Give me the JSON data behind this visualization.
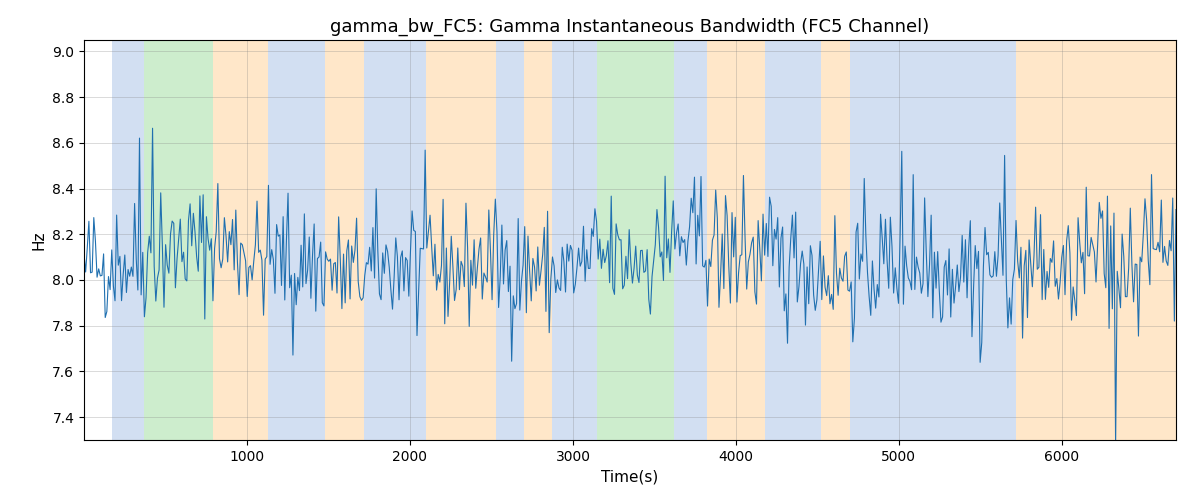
{
  "title": "gamma_bw_FC5: Gamma Instantaneous Bandwidth (FC5 Channel)",
  "xlabel": "Time(s)",
  "ylabel": "Hz",
  "xlim": [
    0,
    6700
  ],
  "ylim": [
    7.3,
    9.05
  ],
  "yticks": [
    7.4,
    7.6,
    7.8,
    8.0,
    8.2,
    8.4,
    8.6,
    8.8,
    9.0
  ],
  "xticks": [
    1000,
    2000,
    3000,
    4000,
    5000,
    6000
  ],
  "line_color": "#2070b0",
  "line_width": 0.8,
  "bg_regions": [
    {
      "xmin": 170,
      "xmax": 370,
      "color": "#aec6e8",
      "alpha": 0.55
    },
    {
      "xmin": 370,
      "xmax": 790,
      "color": "#90d890",
      "alpha": 0.45
    },
    {
      "xmin": 790,
      "xmax": 1130,
      "color": "#ffd59e",
      "alpha": 0.55
    },
    {
      "xmin": 1130,
      "xmax": 1480,
      "color": "#aec6e8",
      "alpha": 0.55
    },
    {
      "xmin": 1480,
      "xmax": 1720,
      "color": "#ffd59e",
      "alpha": 0.55
    },
    {
      "xmin": 1720,
      "xmax": 2100,
      "color": "#aec6e8",
      "alpha": 0.55
    },
    {
      "xmin": 2100,
      "xmax": 2530,
      "color": "#ffd59e",
      "alpha": 0.55
    },
    {
      "xmin": 2530,
      "xmax": 2700,
      "color": "#aec6e8",
      "alpha": 0.55
    },
    {
      "xmin": 2700,
      "xmax": 2870,
      "color": "#ffd59e",
      "alpha": 0.55
    },
    {
      "xmin": 2870,
      "xmax": 3150,
      "color": "#aec6e8",
      "alpha": 0.55
    },
    {
      "xmin": 3150,
      "xmax": 3620,
      "color": "#90d890",
      "alpha": 0.45
    },
    {
      "xmin": 3620,
      "xmax": 3820,
      "color": "#aec6e8",
      "alpha": 0.55
    },
    {
      "xmin": 3820,
      "xmax": 4180,
      "color": "#ffd59e",
      "alpha": 0.55
    },
    {
      "xmin": 4180,
      "xmax": 4520,
      "color": "#aec6e8",
      "alpha": 0.55
    },
    {
      "xmin": 4520,
      "xmax": 4700,
      "color": "#ffd59e",
      "alpha": 0.55
    },
    {
      "xmin": 4700,
      "xmax": 5720,
      "color": "#aec6e8",
      "alpha": 0.55
    },
    {
      "xmin": 5720,
      "xmax": 6700,
      "color": "#ffd59e",
      "alpha": 0.55
    }
  ],
  "seed": 42,
  "n_points": 670,
  "signal_mean": 8.08,
  "signal_std": 0.13,
  "title_fontsize": 13,
  "figsize": [
    12.0,
    5.0
  ],
  "dpi": 100
}
